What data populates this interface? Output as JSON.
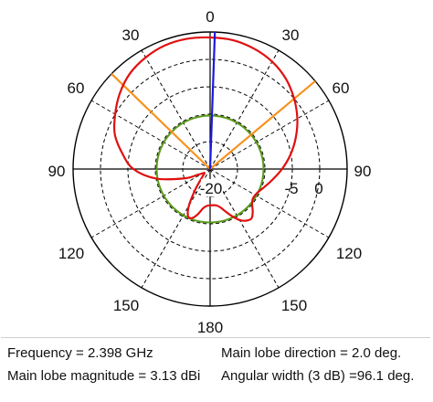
{
  "chart_data": {
    "type": "polar",
    "angle_ticks": [
      "0",
      "30",
      "30",
      "60",
      "60",
      "90",
      "90",
      "120",
      "120",
      "150",
      "150",
      "180"
    ],
    "radial_ticks": [
      "-20",
      "-5",
      "0"
    ],
    "grid": true,
    "series": [
      {
        "color": "#e01010",
        "angles_deg": [
          0,
          10,
          20,
          30,
          40,
          50,
          60,
          70,
          80,
          90,
          100,
          110,
          115,
          120,
          125,
          130,
          135,
          140,
          145,
          150,
          155,
          160,
          165,
          170,
          175,
          180,
          185,
          190,
          195,
          200,
          205,
          210,
          215,
          220,
          225,
          230,
          235,
          240,
          245,
          250,
          260,
          270,
          280,
          290,
          300,
          310,
          320,
          330,
          340,
          350,
          360
        ],
        "radius_norm": [
          0.96,
          0.955,
          0.935,
          0.905,
          0.86,
          0.8,
          0.735,
          0.665,
          0.595,
          0.525,
          0.46,
          0.41,
          0.39,
          0.38,
          0.38,
          0.4,
          0.44,
          0.47,
          0.46,
          0.43,
          0.38,
          0.33,
          0.29,
          0.27,
          0.265,
          0.265,
          0.27,
          0.29,
          0.34,
          0.38,
          0.38,
          0.31,
          0.2,
          0.12,
          0.08,
          0.06,
          0.05,
          0.06,
          0.1,
          0.2,
          0.4,
          0.56,
          0.65,
          0.74,
          0.8,
          0.86,
          0.91,
          0.94,
          0.96,
          0.965,
          0.96
        ]
      }
    ],
    "reference_circle": {
      "color": "#5a9a1a",
      "radius_norm": 0.39
    },
    "main_lobe_line": {
      "color": "#1a1adf",
      "angle_deg": 2.0,
      "radius_norm": 1.0
    },
    "beamwidth_lines": {
      "color": "#f7921e",
      "angles_deg": [
        -46.0,
        50.1
      ],
      "radius_norm": 1.0
    }
  },
  "info": {
    "frequency": "Frequency = 2.398 GHz",
    "lobe_direction": "Main lobe direction = 2.0 deg.",
    "lobe_magnitude": "Main lobe magnitude = 3.13 dBi",
    "angular_width": "Angular width (3 dB) =96.1 deg."
  }
}
